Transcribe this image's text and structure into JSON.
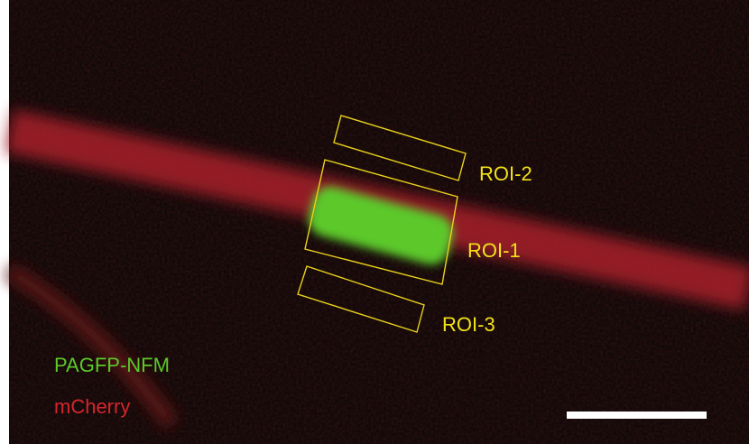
{
  "rois": [
    {
      "label": "ROI-1"
    },
    {
      "label": "ROI-2"
    },
    {
      "label": "ROI-3"
    }
  ],
  "legend": [
    {
      "label": "PAGFP-NFM"
    },
    {
      "label": "mCherry"
    }
  ]
}
